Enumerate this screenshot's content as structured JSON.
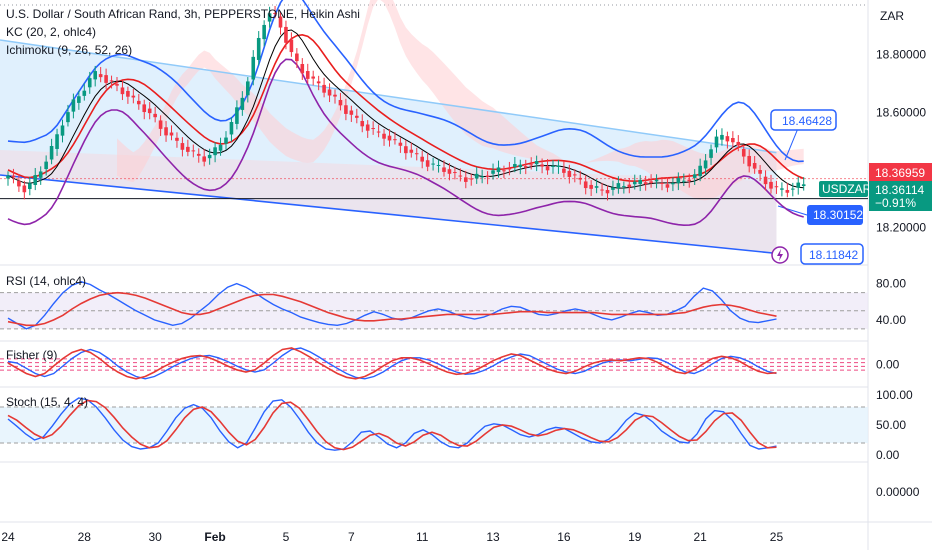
{
  "chart_data": {
    "type": "candlestick",
    "symbol": "USDZAR",
    "title": "U.S. Dollar / South African Rand, 3h, PEPPERSTONE, Heikin Ashi",
    "currency": "ZAR",
    "indicators": [
      "KC (20, 2, ohlc4)",
      "Ichimoku (9, 26, 52, 26)"
    ],
    "price_axis": {
      "ticks": [
        "18.80000",
        "18.60000",
        "18.40000",
        "18.20000"
      ],
      "values": [
        18.8,
        18.6,
        18.4,
        18.2
      ],
      "ylim": [
        18.08,
        18.99
      ]
    },
    "price_labels": {
      "upper_line": "18.46428",
      "lower_line": "18.30152",
      "channel_low": "18.11842",
      "ichimoku_level": "18.36959",
      "last_symbol": "USDZAR",
      "last_price": "18.36114",
      "last_change": "−0.91%"
    },
    "price_labels_values": {
      "upper_line": 18.46428,
      "lower_line": 18.30152,
      "channel_low": 18.11842,
      "ichimoku_level": 18.36959,
      "last_price": 18.36114
    },
    "ha_close": [
      18.38,
      18.35,
      18.33,
      18.37,
      18.42,
      18.48,
      18.56,
      18.62,
      18.66,
      18.71,
      18.74,
      18.71,
      18.69,
      18.67,
      18.64,
      18.62,
      18.59,
      18.55,
      18.52,
      18.49,
      18.47,
      18.45,
      18.44,
      18.46,
      18.5,
      18.56,
      18.64,
      18.73,
      18.85,
      18.95,
      18.93,
      18.86,
      18.78,
      18.74,
      18.71,
      18.69,
      18.66,
      18.63,
      18.6,
      18.57,
      18.55,
      18.53,
      18.52,
      18.5,
      18.48,
      18.46,
      18.44,
      18.42,
      18.41,
      18.4,
      18.38,
      18.37,
      18.37,
      18.38,
      18.39,
      18.4,
      18.41,
      18.41,
      18.42,
      18.42,
      18.41,
      18.41,
      18.4,
      18.38,
      18.36,
      18.34,
      18.33,
      18.33,
      18.34,
      18.35,
      18.35,
      18.36,
      18.36,
      18.35,
      18.35,
      18.36,
      18.37,
      18.38,
      18.44,
      18.5,
      18.52,
      18.5,
      18.46,
      18.42,
      18.38,
      18.35,
      18.33,
      18.33,
      18.34,
      18.35
    ],
    "rsi": {
      "label": "RSI (14, ohlc4)",
      "ticks": [
        "80.00",
        "40.00"
      ],
      "ylim": [
        20,
        95
      ],
      "bands": [
        70,
        50,
        30
      ],
      "rsi": [
        42,
        36,
        30,
        34,
        45,
        58,
        70,
        78,
        82,
        79,
        73,
        68,
        62,
        56,
        50,
        45,
        40,
        37,
        34,
        36,
        42,
        50,
        58,
        68,
        76,
        80,
        76,
        70,
        63,
        57,
        52,
        48,
        43,
        40,
        37,
        35,
        34,
        36,
        40,
        45,
        49,
        46,
        42,
        40,
        42,
        46,
        50,
        52,
        50,
        46,
        43,
        41,
        43,
        47,
        52,
        55,
        54,
        50,
        46,
        45,
        47,
        50,
        52,
        50,
        46,
        42,
        40,
        43,
        47,
        50,
        48,
        45,
        46,
        50,
        55,
        66,
        75,
        72,
        62,
        50,
        42,
        38,
        37,
        39,
        41
      ],
      "ma": [
        38,
        36,
        34,
        34,
        36,
        40,
        45,
        52,
        58,
        63,
        67,
        69,
        70,
        69,
        67,
        64,
        60,
        56,
        52,
        48,
        46,
        46,
        48,
        52,
        56,
        60,
        64,
        67,
        68,
        68,
        66,
        63,
        60,
        56,
        52,
        48,
        45,
        42,
        40,
        39,
        39,
        40,
        41,
        41,
        42,
        43,
        44,
        45,
        46,
        46,
        46,
        46,
        46,
        46,
        47,
        48,
        49,
        49,
        49,
        48,
        48,
        48,
        48,
        48,
        48,
        47,
        46,
        46,
        46,
        46,
        46,
        46,
        46,
        47,
        48,
        51,
        54,
        56,
        57,
        56,
        54,
        51,
        48,
        46,
        44
      ]
    },
    "fisher": {
      "label": "Fisher (9)",
      "ticks": [
        "0.00"
      ],
      "ylim": [
        -2.6,
        2.6
      ],
      "levels": [
        0.75,
        0.25,
        -0.25,
        -0.75
      ],
      "fisher": [
        0.2,
        -0.5,
        -1.2,
        -1.6,
        -1.2,
        -0.2,
        0.8,
        1.6,
        2.0,
        1.6,
        0.8,
        -0.2,
        -1.0,
        -1.6,
        -1.9,
        -1.6,
        -1.0,
        -0.3,
        0.3,
        0.8,
        1.1,
        1.2,
        0.9,
        0.4,
        -0.2,
        -0.7,
        -1.0,
        -0.7,
        0.2,
        1.2,
        2.0,
        2.2,
        1.7,
        1.0,
        0.2,
        -0.5,
        -1.2,
        -1.7,
        -1.9,
        -1.6,
        -1.0,
        -0.2,
        0.5,
        0.9,
        0.9,
        0.6,
        0.1,
        -0.5,
        -1.0,
        -1.3,
        -1.2,
        -0.8,
        -0.2,
        0.5,
        1.0,
        1.4,
        1.2,
        0.6,
        0.0,
        -0.6,
        -1.0,
        -1.2,
        -0.9,
        -0.3,
        0.2,
        0.5,
        0.6,
        0.5,
        0.7,
        0.9,
        0.8,
        0.3,
        -0.4,
        -1.0,
        -1.2,
        -0.7,
        0.1,
        0.8,
        1.1,
        0.9,
        0.4,
        -0.3,
        -0.9,
        -1.2,
        -1.1
      ],
      "trigger": [
        0.4,
        0.2,
        -0.5,
        -1.2,
        -1.6,
        -1.2,
        -0.2,
        0.8,
        1.6,
        2.0,
        1.6,
        0.8,
        -0.2,
        -1.0,
        -1.6,
        -1.9,
        -1.6,
        -1.0,
        -0.3,
        0.3,
        0.8,
        1.1,
        1.2,
        0.9,
        0.4,
        -0.2,
        -0.7,
        -1.0,
        -0.7,
        0.2,
        1.2,
        2.0,
        2.2,
        1.7,
        1.0,
        0.2,
        -0.5,
        -1.2,
        -1.7,
        -1.9,
        -1.6,
        -1.0,
        -0.2,
        0.5,
        0.9,
        0.9,
        0.6,
        0.1,
        -0.5,
        -1.0,
        -1.3,
        -1.2,
        -0.8,
        -0.2,
        0.5,
        1.0,
        1.4,
        1.2,
        0.6,
        0.0,
        -0.6,
        -1.0,
        -1.2,
        -0.9,
        -0.3,
        0.2,
        0.5,
        0.6,
        0.5,
        0.7,
        0.9,
        0.8,
        0.3,
        -0.4,
        -1.0,
        -1.2,
        -0.7,
        0.1,
        0.8,
        1.1,
        0.9,
        0.4,
        -0.3,
        -0.9,
        -1.2
      ]
    },
    "stoch": {
      "label": "Stoch (15, 4, 4)",
      "ticks": [
        "100.00",
        "50.00",
        "0.00"
      ],
      "ylim": [
        -5,
        105
      ],
      "bands": [
        80,
        20
      ],
      "k": [
        60,
        48,
        35,
        25,
        30,
        48,
        68,
        85,
        95,
        92,
        80,
        62,
        42,
        25,
        14,
        10,
        12,
        20,
        40,
        62,
        78,
        84,
        78,
        62,
        40,
        22,
        12,
        20,
        45,
        72,
        90,
        92,
        80,
        60,
        38,
        20,
        10,
        8,
        10,
        22,
        38,
        40,
        30,
        18,
        12,
        20,
        36,
        42,
        34,
        22,
        14,
        12,
        20,
        35,
        48,
        52,
        50,
        42,
        34,
        30,
        34,
        42,
        46,
        44,
        36,
        28,
        22,
        20,
        26,
        40,
        58,
        70,
        66,
        55,
        40,
        30,
        22,
        20,
        35,
        60,
        74,
        72,
        58,
        36,
        16,
        10,
        12,
        15
      ],
      "d": [
        66,
        58,
        46,
        35,
        28,
        34,
        48,
        66,
        82,
        91,
        89,
        79,
        63,
        45,
        30,
        18,
        12,
        14,
        24,
        42,
        62,
        76,
        80,
        72,
        56,
        38,
        23,
        17,
        26,
        46,
        70,
        86,
        88,
        78,
        59,
        39,
        22,
        12,
        9,
        13,
        23,
        33,
        36,
        30,
        20,
        15,
        22,
        33,
        38,
        33,
        23,
        16,
        15,
        23,
        35,
        46,
        50,
        48,
        42,
        35,
        32,
        35,
        41,
        44,
        42,
        36,
        29,
        23,
        22,
        29,
        42,
        58,
        66,
        64,
        54,
        42,
        31,
        24,
        25,
        39,
        57,
        69,
        70,
        58,
        38,
        20,
        12,
        13
      ]
    },
    "x_ticks": [
      "24",
      "28",
      "30",
      "Feb",
      "5",
      "7",
      "11",
      "13",
      "16",
      "19",
      "21",
      "25"
    ],
    "x_tick_index": [
      0,
      14,
      27,
      38,
      51,
      63,
      76,
      89,
      102,
      115,
      127,
      141
    ],
    "bar_count": 147,
    "extra_axis": "0.00000",
    "colors": {
      "up": "#089981",
      "down": "#f23645",
      "kc": "#2962ff",
      "ichimoku_red": "#e91e1e",
      "ichimoku_purple": "#8e24aa",
      "sma": "#000000",
      "rsi": "#e53935",
      "rsi_line": "#2962ff",
      "cloud_green": "#c8e6c9",
      "cloud_red": "#ffcdd2",
      "channel_fill": "#bbdefb",
      "tag_blue": "#2962ff",
      "tag_red": "#f23645",
      "tag_teal": "#089981"
    }
  }
}
